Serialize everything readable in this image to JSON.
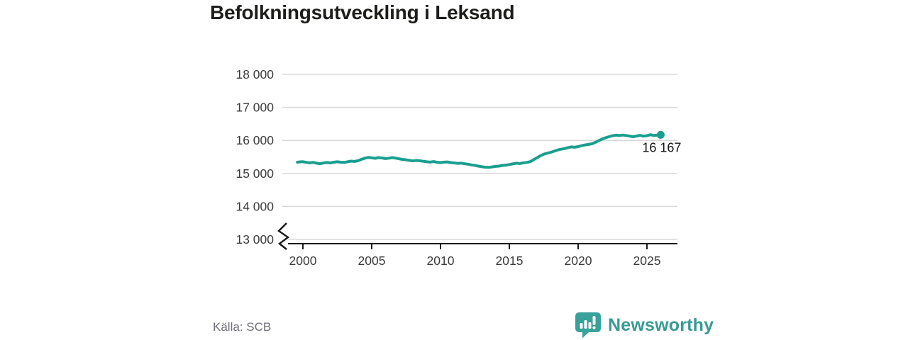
{
  "title": "Befolkningsutveckling i Leksand",
  "source": "Källa: SCB",
  "brand": {
    "name": "Newsworthy",
    "wordmark_color": "#389a94",
    "icon": "newsworthy-speech-bubble-bar-chart-icon",
    "icon_color": "#38a199"
  },
  "chart_data": {
    "type": "line",
    "title": "Befolkningsutveckling i Leksand",
    "xlabel": "",
    "ylabel": "",
    "grid": "horizontal",
    "legend": "none",
    "y_axis_break": true,
    "ylim": [
      13000,
      18000
    ],
    "xlim": [
      1998.5,
      2027.2
    ],
    "x_ticks": [
      2000,
      2005,
      2010,
      2015,
      2020,
      2025
    ],
    "x_tick_labels": [
      "2000",
      "2005",
      "2010",
      "2015",
      "2020",
      "2025"
    ],
    "y_ticks": [
      13000,
      14000,
      15000,
      16000,
      17000,
      18000
    ],
    "y_tick_labels": [
      "13 000",
      "14 000",
      "15 000",
      "16 000",
      "17 000",
      "18 000"
    ],
    "line_color": "#1a9e8f",
    "annotation": {
      "label": "16 167",
      "x": 2026.0,
      "y": 16167
    },
    "series": [
      {
        "points": [
          [
            1999.6,
            15340
          ],
          [
            1999.8,
            15350
          ],
          [
            2000.0,
            15355
          ],
          [
            2000.25,
            15335
          ],
          [
            2000.5,
            15320
          ],
          [
            2000.75,
            15335
          ],
          [
            2001.0,
            15310
          ],
          [
            2001.25,
            15295
          ],
          [
            2001.5,
            15315
          ],
          [
            2001.75,
            15330
          ],
          [
            2002.0,
            15318
          ],
          [
            2002.25,
            15340
          ],
          [
            2002.5,
            15352
          ],
          [
            2002.75,
            15338
          ],
          [
            2003.0,
            15332
          ],
          [
            2003.25,
            15352
          ],
          [
            2003.5,
            15372
          ],
          [
            2003.75,
            15362
          ],
          [
            2004.0,
            15382
          ],
          [
            2004.25,
            15425
          ],
          [
            2004.5,
            15462
          ],
          [
            2004.75,
            15482
          ],
          [
            2005.0,
            15472
          ],
          [
            2005.25,
            15458
          ],
          [
            2005.5,
            15478
          ],
          [
            2005.75,
            15468
          ],
          [
            2006.0,
            15448
          ],
          [
            2006.25,
            15462
          ],
          [
            2006.5,
            15478
          ],
          [
            2006.75,
            15462
          ],
          [
            2007.0,
            15442
          ],
          [
            2007.25,
            15422
          ],
          [
            2007.5,
            15412
          ],
          [
            2007.75,
            15392
          ],
          [
            2008.0,
            15378
          ],
          [
            2008.25,
            15392
          ],
          [
            2008.5,
            15382
          ],
          [
            2008.75,
            15368
          ],
          [
            2009.0,
            15352
          ],
          [
            2009.25,
            15342
          ],
          [
            2009.5,
            15358
          ],
          [
            2009.75,
            15338
          ],
          [
            2010.0,
            15328
          ],
          [
            2010.25,
            15342
          ],
          [
            2010.5,
            15348
          ],
          [
            2010.75,
            15328
          ],
          [
            2011.0,
            15318
          ],
          [
            2011.25,
            15302
          ],
          [
            2011.5,
            15312
          ],
          [
            2011.75,
            15292
          ],
          [
            2012.0,
            15278
          ],
          [
            2012.25,
            15258
          ],
          [
            2012.5,
            15242
          ],
          [
            2012.75,
            15222
          ],
          [
            2013.0,
            15202
          ],
          [
            2013.25,
            15188
          ],
          [
            2013.5,
            15182
          ],
          [
            2013.75,
            15198
          ],
          [
            2014.0,
            15212
          ],
          [
            2014.25,
            15222
          ],
          [
            2014.5,
            15242
          ],
          [
            2014.75,
            15252
          ],
          [
            2015.0,
            15268
          ],
          [
            2015.25,
            15288
          ],
          [
            2015.5,
            15308
          ],
          [
            2015.75,
            15298
          ],
          [
            2016.0,
            15318
          ],
          [
            2016.25,
            15332
          ],
          [
            2016.5,
            15352
          ],
          [
            2016.75,
            15412
          ],
          [
            2017.0,
            15472
          ],
          [
            2017.25,
            15532
          ],
          [
            2017.5,
            15582
          ],
          [
            2017.75,
            15612
          ],
          [
            2018.0,
            15638
          ],
          [
            2018.25,
            15672
          ],
          [
            2018.5,
            15708
          ],
          [
            2018.75,
            15732
          ],
          [
            2019.0,
            15752
          ],
          [
            2019.25,
            15782
          ],
          [
            2019.5,
            15802
          ],
          [
            2019.75,
            15792
          ],
          [
            2020.0,
            15812
          ],
          [
            2020.25,
            15838
          ],
          [
            2020.5,
            15862
          ],
          [
            2020.75,
            15878
          ],
          [
            2021.0,
            15898
          ],
          [
            2021.25,
            15942
          ],
          [
            2021.5,
            15992
          ],
          [
            2021.75,
            16042
          ],
          [
            2022.0,
            16082
          ],
          [
            2022.25,
            16112
          ],
          [
            2022.5,
            16142
          ],
          [
            2022.75,
            16158
          ],
          [
            2023.0,
            16148
          ],
          [
            2023.25,
            16162
          ],
          [
            2023.5,
            16148
          ],
          [
            2023.75,
            16128
          ],
          [
            2024.0,
            16112
          ],
          [
            2024.25,
            16132
          ],
          [
            2024.5,
            16152
          ],
          [
            2024.75,
            16128
          ],
          [
            2025.0,
            16142
          ],
          [
            2025.25,
            16172
          ],
          [
            2025.5,
            16148
          ],
          [
            2025.75,
            16158
          ],
          [
            2026.0,
            16167
          ]
        ]
      }
    ],
    "source": "Källa: SCB"
  }
}
